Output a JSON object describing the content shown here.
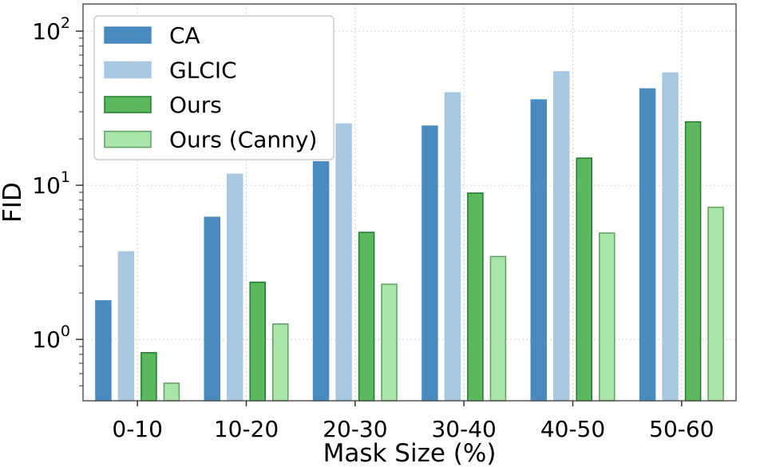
{
  "chart_data": {
    "type": "bar",
    "xlabel": "Mask Size (%)",
    "ylabel": "FID",
    "yscale": "log",
    "ylim": [
      0.4,
      150
    ],
    "y_ticks": [
      {
        "value": 1,
        "base": "10",
        "exp": "0"
      },
      {
        "value": 10,
        "base": "10",
        "exp": "1"
      },
      {
        "value": 100,
        "base": "10",
        "exp": "2"
      }
    ],
    "grid": true,
    "legend_position": "top-left",
    "categories": [
      "0-10",
      "10-20",
      "20-30",
      "30-40",
      "40-50",
      "50-60"
    ],
    "series": [
      {
        "name": "CA",
        "color": "#4a8bbf",
        "edge": "#4a8bbf",
        "values": [
          1.78,
          6.2,
          14.2,
          24.2,
          35.8,
          42.2
        ]
      },
      {
        "name": "GLCIC",
        "color": "#a8c8e2",
        "edge": "#a8c8e2",
        "values": [
          3.7,
          11.8,
          25.0,
          39.8,
          54.5,
          53.5
        ]
      },
      {
        "name": "Ours",
        "color": "#5cb85f",
        "edge": "#1f7a2c",
        "values": [
          0.82,
          2.35,
          4.95,
          8.9,
          15.0,
          25.8
        ]
      },
      {
        "name": "Ours (Canny)",
        "color": "#a9e4a8",
        "edge": "#5f9f64",
        "values": [
          0.52,
          1.26,
          2.28,
          3.45,
          4.9,
          7.2
        ]
      }
    ]
  }
}
